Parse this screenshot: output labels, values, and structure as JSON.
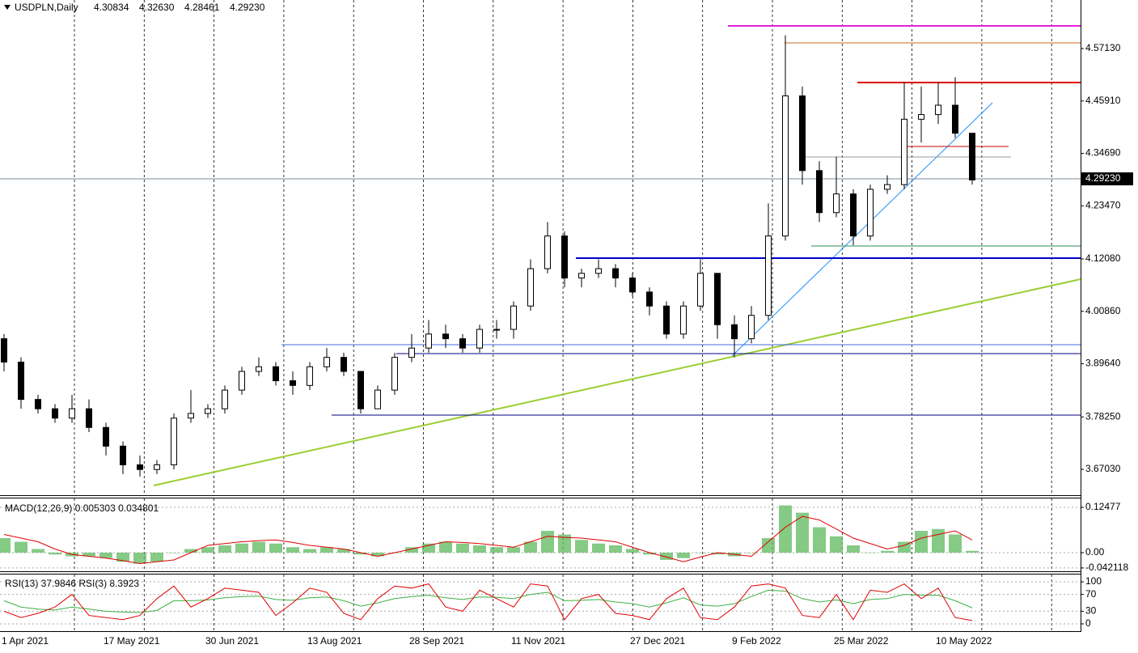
{
  "chart_data": [
    {
      "type": "candlestick",
      "title": "USDPLN,Daily",
      "quote": [
        "4.30834",
        "4.32630",
        "4.28461",
        "4.29230"
      ],
      "categories": [
        "1 Apr 2021",
        null,
        null,
        null,
        null,
        null,
        "17 May 2021",
        null,
        null,
        null,
        null,
        null,
        "30 Jun 2021",
        null,
        null,
        null,
        null,
        null,
        "13 Aug 2021",
        null,
        null,
        null,
        null,
        null,
        "28 Sep 2021",
        null,
        null,
        null,
        null,
        null,
        "11 Nov 2021",
        null,
        null,
        null,
        null,
        null,
        null,
        "27 Dec 2021",
        null,
        null,
        null,
        null,
        null,
        "9 Feb 2022",
        null,
        null,
        null,
        null,
        null,
        "25 Mar 2022",
        null,
        null,
        null,
        null,
        null,
        "10 May 2022",
        null,
        null
      ],
      "open": [
        3.95,
        3.9,
        3.82,
        3.8,
        3.78,
        3.8,
        3.76,
        3.72,
        3.68,
        3.67,
        3.68,
        3.78,
        3.79,
        3.8,
        3.84,
        3.88,
        3.89,
        3.86,
        3.85,
        3.89,
        3.91,
        3.88,
        3.8,
        3.84,
        3.91,
        3.93,
        3.96,
        3.95,
        3.93,
        3.97,
        3.97,
        4.02,
        4.1,
        4.17,
        4.08,
        4.09,
        4.1,
        4.08,
        4.05,
        4.02,
        3.96,
        4.02,
        4.09,
        3.98,
        3.95,
        4.0,
        4.17,
        4.47,
        4.31,
        4.22,
        4.26,
        4.17,
        4.27,
        4.28,
        4.42,
        4.43,
        4.45,
        4.39
      ],
      "high": [
        3.96,
        3.91,
        3.83,
        3.81,
        3.83,
        3.82,
        3.77,
        3.73,
        3.7,
        3.69,
        3.79,
        3.84,
        3.81,
        3.85,
        3.89,
        3.91,
        3.9,
        3.88,
        3.9,
        3.93,
        3.92,
        3.88,
        3.85,
        3.92,
        3.96,
        3.99,
        3.98,
        3.96,
        3.98,
        3.99,
        4.03,
        4.12,
        4.2,
        4.18,
        4.1,
        4.12,
        4.11,
        4.09,
        4.06,
        4.03,
        4.03,
        4.12,
        4.09,
        4.0,
        4.02,
        4.24,
        4.6,
        4.49,
        4.33,
        4.34,
        4.27,
        4.28,
        4.3,
        4.5,
        4.49,
        4.5,
        4.51,
        4.39
      ],
      "low": [
        3.88,
        3.8,
        3.79,
        3.77,
        3.77,
        3.75,
        3.7,
        3.66,
        3.655,
        3.66,
        3.67,
        3.77,
        3.78,
        3.79,
        3.83,
        3.87,
        3.85,
        3.83,
        3.84,
        3.88,
        3.87,
        3.79,
        3.8,
        3.83,
        3.9,
        3.92,
        3.93,
        3.92,
        3.92,
        3.95,
        3.95,
        4.01,
        4.09,
        4.06,
        4.06,
        4.08,
        4.06,
        4.04,
        4.0,
        3.95,
        3.95,
        4.01,
        3.95,
        3.91,
        3.94,
        3.99,
        4.16,
        4.28,
        4.2,
        4.21,
        4.15,
        4.16,
        4.26,
        4.27,
        4.37,
        4.41,
        4.38,
        4.28
      ],
      "close": [
        3.9,
        3.82,
        3.8,
        3.78,
        3.8,
        3.76,
        3.72,
        3.68,
        3.67,
        3.68,
        3.78,
        3.79,
        3.8,
        3.84,
        3.88,
        3.89,
        3.86,
        3.85,
        3.89,
        3.91,
        3.88,
        3.8,
        3.84,
        3.91,
        3.93,
        3.96,
        3.95,
        3.93,
        3.97,
        3.97,
        4.02,
        4.1,
        4.17,
        4.08,
        4.09,
        4.1,
        4.08,
        4.05,
        4.02,
        3.96,
        4.02,
        4.09,
        3.98,
        3.95,
        4.0,
        4.17,
        4.47,
        4.31,
        4.22,
        4.26,
        4.17,
        4.27,
        4.28,
        4.42,
        4.43,
        4.45,
        4.39,
        4.29
      ],
      "up_color": "#ffffff",
      "down_color": "#000000",
      "ylim": [
        3.6149,
        4.6753
      ],
      "yticks": [
        {
          "value": 4.5713,
          "label": "4.57130"
        },
        {
          "value": 4.4591,
          "label": "4.45910"
        },
        {
          "value": 4.3469,
          "label": "4.34690"
        },
        {
          "value": 4.2347,
          "label": "4.23470"
        },
        {
          "value": 4.1208,
          "label": "4.12080"
        },
        {
          "value": 4.0086,
          "label": "4.00860"
        },
        {
          "value": 3.8964,
          "label": "3.89640"
        },
        {
          "value": 3.7825,
          "label": "3.78250"
        },
        {
          "value": 3.6703,
          "label": "3.67030"
        }
      ],
      "last_price": {
        "value": 4.2923,
        "label": "4.29230"
      }
    },
    {
      "type": "macd",
      "title": "MACD(12,26,9) 0.005303 0.034801",
      "series": [
        {
          "style": "bar",
          "color": "#5cb85c",
          "values": [
            0.04,
            0.03,
            0.01,
            -0.005,
            -0.01,
            -0.01,
            -0.015,
            -0.025,
            -0.03,
            -0.025,
            0.0,
            0.01,
            0.015,
            0.02,
            0.025,
            0.03,
            0.025,
            0.015,
            0.01,
            0.015,
            0.01,
            -0.005,
            -0.01,
            0.0,
            0.015,
            0.025,
            0.03,
            0.025,
            0.02,
            0.015,
            0.015,
            0.03,
            0.06,
            0.05,
            0.035,
            0.025,
            0.02,
            0.01,
            -0.005,
            -0.02,
            -0.015,
            0.0,
            -0.005,
            -0.01,
            0.0,
            0.04,
            0.13,
            0.11,
            0.07,
            0.045,
            0.02,
            0.0,
            0.005,
            0.03,
            0.06,
            0.065,
            0.05,
            0.005
          ]
        },
        {
          "style": "line",
          "color": "#e00000",
          "values": [
            0.05,
            0.04,
            0.03,
            0.01,
            -0.005,
            -0.01,
            -0.015,
            -0.022,
            -0.03,
            -0.025,
            -0.02,
            0.0,
            0.02,
            0.025,
            0.03,
            0.033,
            0.035,
            0.028,
            0.02,
            0.015,
            0.01,
            0.0,
            -0.01,
            0.0,
            0.01,
            0.02,
            0.03,
            0.028,
            0.025,
            0.02,
            0.015,
            0.03,
            0.045,
            0.042,
            0.04,
            0.035,
            0.03,
            0.015,
            0.0,
            -0.012,
            -0.025,
            -0.012,
            0.0,
            -0.005,
            -0.01,
            0.03,
            0.07,
            0.1,
            0.09,
            0.065,
            0.04,
            0.025,
            0.01,
            0.02,
            0.04,
            0.05,
            0.06,
            0.035
          ]
        }
      ],
      "ylim": [
        -0.0468,
        0.147
      ],
      "yticks": [
        0.12477,
        {
          "value": 0,
          "label": "0.00"
        },
        -0.042118
      ]
    },
    {
      "type": "rsi",
      "title": "RSI(13) 37.9846  RSI(3) 8.3923",
      "series": [
        {
          "style": "line",
          "color": "#3cb043",
          "values": [
            55,
            40,
            35,
            33,
            40,
            35,
            30,
            28,
            27,
            32,
            55,
            55,
            57,
            62,
            65,
            66,
            58,
            56,
            62,
            64,
            55,
            42,
            50,
            60,
            65,
            68,
            62,
            58,
            64,
            63,
            60,
            70,
            75,
            55,
            56,
            58,
            52,
            48,
            40,
            50,
            62,
            45,
            42,
            48,
            65,
            80,
            78,
            60,
            52,
            57,
            48,
            58,
            60,
            70,
            68,
            68,
            55,
            38
          ]
        },
        {
          "style": "line",
          "color": "#e00000",
          "values": [
            30,
            15,
            25,
            40,
            70,
            20,
            15,
            10,
            20,
            60,
            90,
            40,
            60,
            85,
            80,
            75,
            20,
            50,
            85,
            75,
            25,
            10,
            60,
            90,
            85,
            95,
            40,
            30,
            80,
            60,
            40,
            95,
            90,
            10,
            60,
            70,
            25,
            20,
            10,
            60,
            85,
            15,
            10,
            40,
            90,
            95,
            85,
            20,
            15,
            70,
            10,
            80,
            75,
            95,
            60,
            85,
            15,
            8
          ]
        }
      ],
      "ylim": [
        -13.5,
        113.5
      ],
      "yticks": [
        100,
        70,
        30,
        0
      ]
    }
  ]
}
